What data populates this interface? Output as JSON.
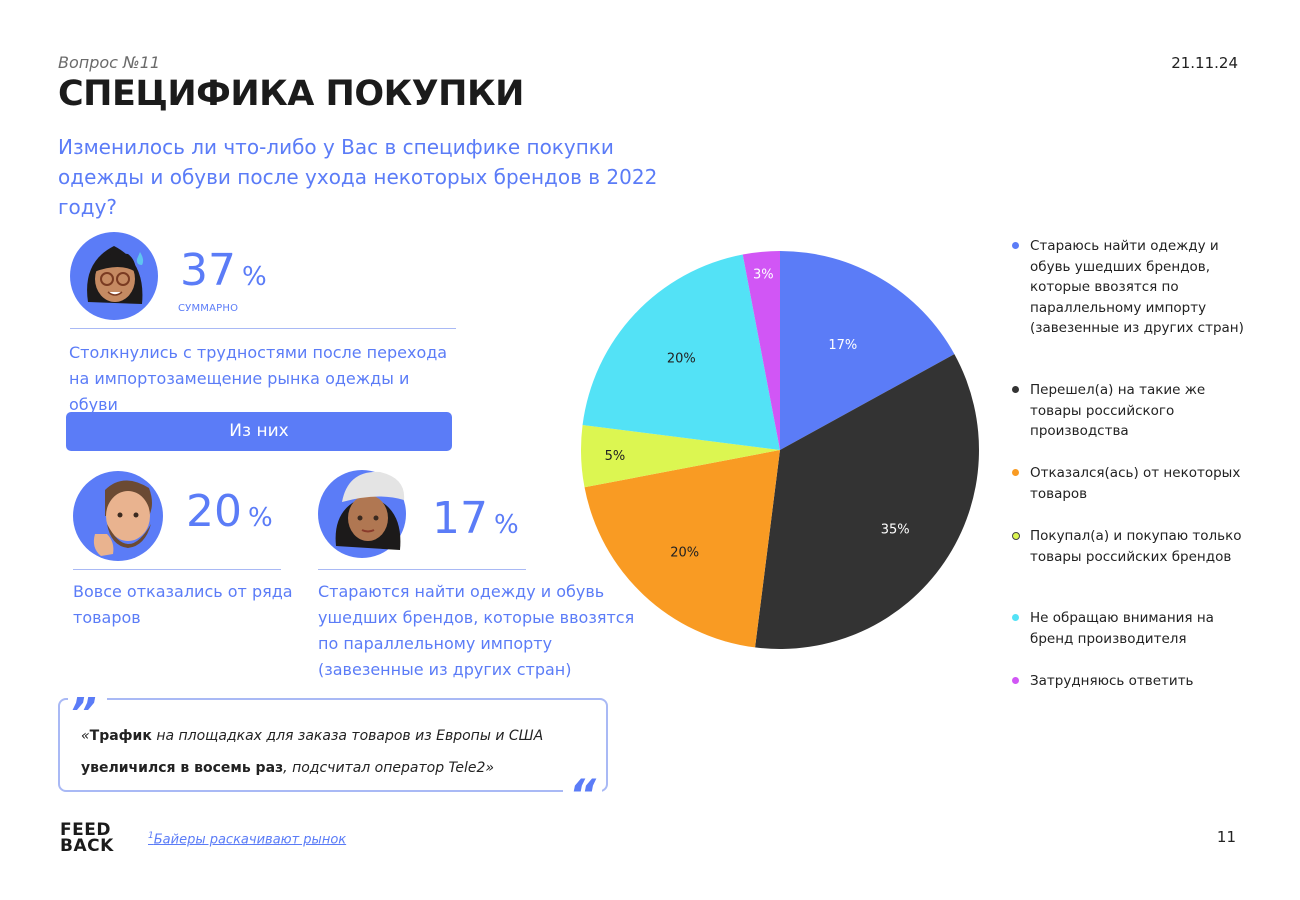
{
  "header": {
    "question_no": "Вопрос №11",
    "title": "СПЕЦИФИКА ПОКУПКИ",
    "date": "21.11.24",
    "subtitle": "Изменилось ли что-либо у Вас в специфике покупки одежды и обуви после ухода некоторых брендов в 2022 году?"
  },
  "summary": {
    "value": "37",
    "unit": "%",
    "label": "СУММАРНО",
    "description": "Столкнулись с трудностями после перехода на импортозамещение рынка одежды и обуви"
  },
  "from_them_label": "Из них",
  "stat_left": {
    "value": "20",
    "unit": "%",
    "description": "Вовсе отказались от ряда товаров"
  },
  "stat_right": {
    "value": "17",
    "unit": "%",
    "description": "Стараются найти одежду и обувь ушедших брендов, которые ввозятся по параллельному импорту (завезенные из других стран)"
  },
  "quote": {
    "open_mark": "„",
    "close_mark": "“",
    "open_quote": "«",
    "bold1": "Трафик",
    "text1": " на площадках для заказа товаров из Европы и США",
    "bold2": "увеличился в восемь раз",
    "text2": ", подсчитал оператор Tele2»"
  },
  "footer": {
    "logo_line1": "FEED",
    "logo_line2": "BACK",
    "footnote_mark": "1",
    "footnote_text": "Байеры раскачивают рынок",
    "page_number": "11"
  },
  "chart_data": {
    "type": "pie",
    "values": [
      17,
      35,
      20,
      5,
      20,
      3
    ],
    "labels": [
      "17%",
      "35%",
      "20%",
      "5%",
      "20%",
      "3%"
    ],
    "categories": [
      "Стараюсь найти одежду и обувь ушедших брендов, которые ввозятся по параллельному импорту (завезенные из других стран)",
      "Перешел(а) на такие же товары российского производства",
      "Отказался(ась) от некоторых товаров",
      "Покупал(а) и покупаю только товары российских брендов",
      "Не обращаю внимания на бренд производителя",
      "Затрудняюсь ответить"
    ],
    "colors": [
      "#5b7cf7",
      "#333333",
      "#f99b23",
      "#dcf651",
      "#53e2f6",
      "#d156f5"
    ],
    "legend_position": "right",
    "start_angle": "12 o'clock, clockwise"
  }
}
